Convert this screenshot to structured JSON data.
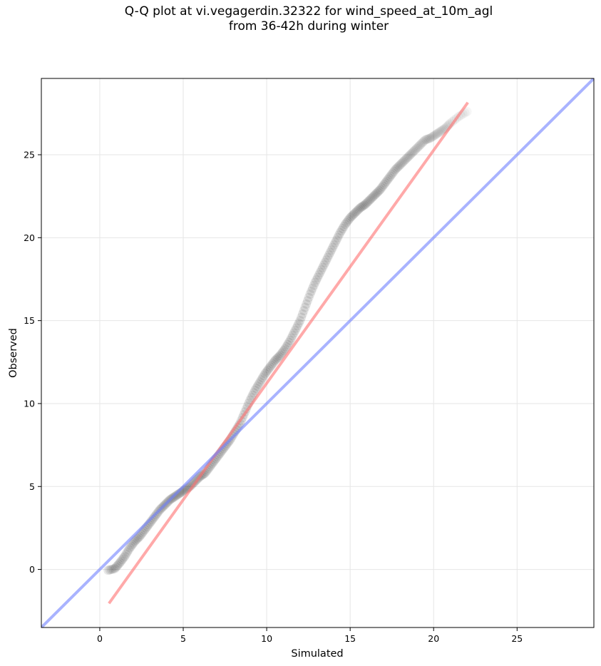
{
  "figure": {
    "title_line1": "Q-Q plot at vi.vegagerdin.32322 for wind_speed_at_10m_agl",
    "title_line2": "from 36-42h during winter"
  },
  "chart_data": {
    "type": "scatter",
    "title": "Q-Q plot at vi.vegagerdin.32322 for wind_speed_at_10m_agl from 36-42h during winter",
    "xlabel": "Simulated",
    "ylabel": "Observed",
    "xlim": [
      -3.5,
      29.6
    ],
    "ylim": [
      -3.5,
      29.6
    ],
    "xticks": [
      0,
      5,
      10,
      15,
      20,
      25
    ],
    "yticks": [
      0,
      5,
      10,
      15,
      20,
      25
    ],
    "grid": true,
    "series": [
      {
        "kind": "points",
        "color": "#000000",
        "opacity": 0.09,
        "x": [
          0.5,
          0.9,
          1.2,
          1.5,
          1.8,
          2.1,
          2.4,
          2.7,
          3.0,
          3.3,
          3.6,
          3.9,
          4.2,
          4.5,
          4.8,
          5.1,
          5.4,
          5.7,
          6.0,
          6.3,
          6.6,
          6.9,
          7.2,
          7.5,
          7.8,
          8.1,
          8.4,
          8.7,
          9.0,
          9.3,
          9.6,
          9.9,
          10.2,
          10.5,
          10.8,
          11.1,
          11.4,
          11.7,
          12.0,
          12.3,
          12.6,
          12.9,
          13.2,
          13.5,
          13.8,
          14.1,
          14.4,
          14.7,
          15.0,
          15.3,
          15.6,
          15.9,
          16.2,
          16.5,
          16.8,
          17.1,
          17.4,
          17.7,
          18.0,
          18.3,
          18.6,
          18.9,
          19.2,
          19.5,
          19.8,
          20.1,
          20.4,
          20.7,
          21.0,
          21.5,
          22.0
        ],
        "y": [
          -0.05,
          0.05,
          0.4,
          0.8,
          1.3,
          1.7,
          2.0,
          2.4,
          2.8,
          3.2,
          3.6,
          3.9,
          4.2,
          4.4,
          4.6,
          4.8,
          5.0,
          5.3,
          5.6,
          5.8,
          6.2,
          6.6,
          7.0,
          7.4,
          7.8,
          8.3,
          8.8,
          9.5,
          10.2,
          10.8,
          11.3,
          11.8,
          12.2,
          12.6,
          12.9,
          13.3,
          13.8,
          14.4,
          15.0,
          15.8,
          16.6,
          17.3,
          17.9,
          18.5,
          19.1,
          19.7,
          20.3,
          20.8,
          21.2,
          21.5,
          21.8,
          22.0,
          22.3,
          22.6,
          22.9,
          23.3,
          23.7,
          24.1,
          24.4,
          24.7,
          25.0,
          25.3,
          25.6,
          25.9,
          26.0,
          26.2,
          26.4,
          26.6,
          26.9,
          27.3,
          27.6
        ]
      },
      {
        "kind": "fit-line",
        "color": "#ff7070",
        "opacity": 0.6,
        "x": [
          0.55,
          22.05
        ],
        "y": [
          -2.05,
          28.15
        ]
      },
      {
        "kind": "identity-line",
        "color": "#7080ff",
        "opacity": 0.6,
        "x": [
          -3.5,
          29.6
        ],
        "y": [
          -3.5,
          29.6
        ]
      }
    ]
  }
}
